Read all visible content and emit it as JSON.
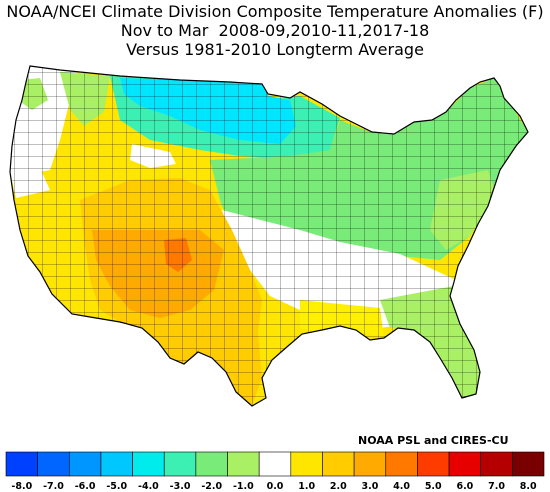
{
  "title": {
    "line1": "NOAA/NCEI Climate Division Composite Temperature Anomalies (F)",
    "line2": "Nov to Mar  2008-09,2010-11,2017-18",
    "line3": "Versus 1981-2010 Longterm Average"
  },
  "credit": "NOAA PSL and CIRES-CU",
  "legend": {
    "ticks": [
      "-8.0",
      "-7.0",
      "-6.0",
      "-5.0",
      "-4.0",
      "-3.0",
      "-2.0",
      "-1.0",
      "0.0",
      "1.0",
      "2.0",
      "3.0",
      "4.0",
      "5.0",
      "6.0",
      "7.0",
      "8.0"
    ],
    "colors": [
      "#0040ff",
      "#0066ff",
      "#0096ff",
      "#00c8ff",
      "#00ebeb",
      "#3cf0b4",
      "#78eb78",
      "#aaf064",
      "#ffffff",
      "#ffe600",
      "#ffcc00",
      "#ffaa00",
      "#ff7800",
      "#ff3c00",
      "#e60000",
      "#b40000",
      "#780000"
    ]
  },
  "map_regions": {
    "northern_plains_cold": "#00e6ff",
    "upper_midwest_cool": "#3cf0b4",
    "midwest_northeast": "#78eb78",
    "southeast_mild": "#aaf064",
    "neutral": "#ffffff",
    "west_warm": "#ffe600",
    "southwest_warmer": "#ffcc00",
    "four_corners_warmest": "#ffaa00",
    "colorado_hot": "#ff7800",
    "gulf_slight": "#fff000"
  }
}
